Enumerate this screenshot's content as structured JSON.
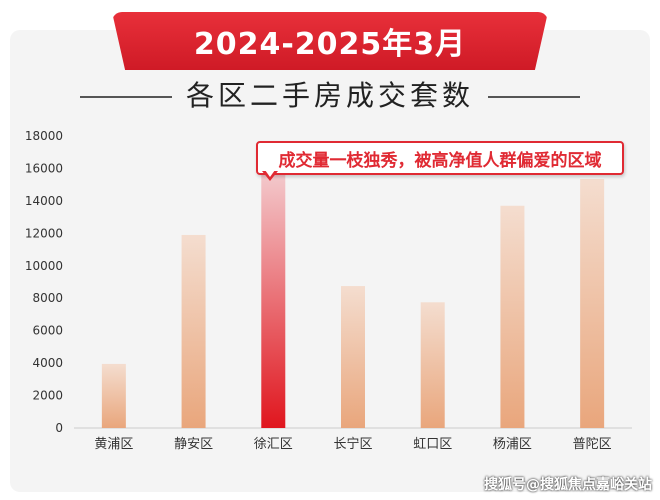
{
  "header": {
    "banner_title": "2024-2025年3月",
    "subtitle": "各区二手房成交套数"
  },
  "callout": {
    "text": "成交量一枝独秀，被高净值人群偏爱的区域"
  },
  "watermark": "搜狐号@搜狐焦点嘉峪关站",
  "colors": {
    "banner": "#d9222c",
    "highlight_bar": "#e3262c",
    "normal_bar": "#e8a77e",
    "axis_text": "#333333"
  },
  "chart_data": {
    "type": "bar",
    "title": "各区二手房成交套数",
    "subtitle": "2024-2025年3月",
    "categories": [
      "黄浦区",
      "静安区",
      "徐汇区",
      "长宁区",
      "虹口区",
      "杨浦区",
      "普陀区"
    ],
    "values": [
      3950,
      11900,
      15700,
      8750,
      7750,
      13700,
      15350
    ],
    "highlight": "徐汇区",
    "ylim": [
      0,
      18000
    ],
    "yticks": [
      0,
      2000,
      4000,
      6000,
      8000,
      10000,
      12000,
      14000,
      16000,
      18000
    ],
    "xlabel": "",
    "ylabel": "",
    "grid": false,
    "legend": "none"
  }
}
